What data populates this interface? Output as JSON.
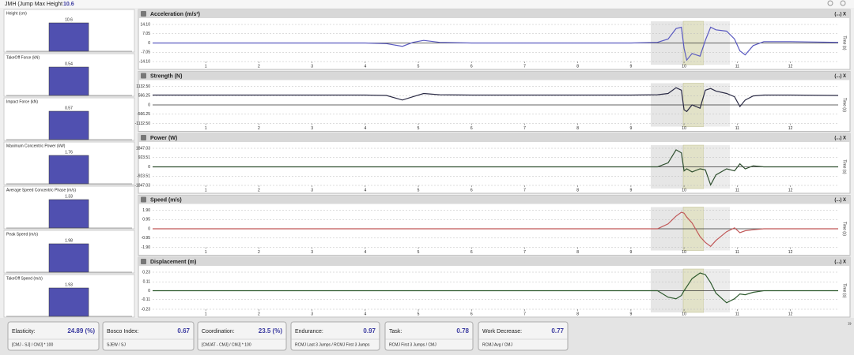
{
  "header": {
    "label": "JMH (Jump Max Height",
    "value": "10.6"
  },
  "indicators": [
    {
      "title": "Height (cm)",
      "value": 10.6
    },
    {
      "title": "TakeOff Force (kN)",
      "value": 0.54
    },
    {
      "title": "Impact Force (kN)",
      "value": 0.57
    },
    {
      "title": "Maximum Concentric Power (kW)",
      "value": 1.76
    },
    {
      "title": "Average Speed Concentric Phase (m/s)",
      "value": 1.33
    },
    {
      "title": "Peak Speed (m/s)",
      "value": 1.98
    },
    {
      "title": "TakeOff Speed (m/s)",
      "value": 1.93
    }
  ],
  "chart_controls": "(...) X",
  "chart_data": [
    {
      "type": "line",
      "title": "Acceleration (m/s²)",
      "xlabel": "Time (s)",
      "x": [
        0,
        1,
        2,
        3,
        4,
        4.4,
        4.7,
        4.9,
        5.1,
        5.4,
        6,
        7,
        8,
        9,
        9.5,
        9.7,
        9.85,
        9.95,
        10,
        10.05,
        10.15,
        10.3,
        10.4,
        10.5,
        10.6,
        10.8,
        10.95,
        11.05,
        11.15,
        11.3,
        11.5,
        12,
        12.9
      ],
      "series": [
        {
          "color": "#5a5ac0",
          "values": [
            0,
            0,
            0,
            0,
            0,
            -0.5,
            -2.5,
            0.5,
            2,
            0.5,
            0,
            0,
            0,
            0,
            0.5,
            3,
            11,
            12,
            -4,
            -13,
            -8,
            -10,
            2,
            12,
            10,
            9,
            3,
            -6,
            -9,
            -2,
            1,
            1,
            0.5
          ]
        }
      ],
      "xlim": [
        0,
        12.9
      ],
      "xticks": [
        1,
        2,
        3,
        4,
        5,
        6,
        7,
        8,
        9,
        10,
        11,
        12
      ],
      "ylim": [
        -14.1,
        14.1
      ],
      "yticks": [
        {
          "value": 14.1,
          "label": "14.10"
        },
        7.05,
        0,
        -7.05,
        {
          "value": -14.1,
          "label": "-14.10"
        }
      ],
      "grid": true
    },
    {
      "type": "line",
      "title": "Strength (N)",
      "xlabel": "Time (s)",
      "x": [
        0,
        1,
        2,
        3,
        4,
        4.4,
        4.7,
        4.9,
        5.1,
        5.4,
        6,
        7,
        8,
        9,
        9.5,
        9.7,
        9.85,
        9.95,
        10,
        10.05,
        10.15,
        10.3,
        10.4,
        10.5,
        10.6,
        10.8,
        10.95,
        11.05,
        11.15,
        11.3,
        11.5,
        12,
        12.9
      ],
      "series": [
        {
          "color": "#2a2a44",
          "values": [
            600,
            600,
            600,
            600,
            600,
            580,
            300,
            500,
            700,
            620,
            600,
            600,
            600,
            600,
            620,
            700,
            1050,
            900,
            -300,
            -400,
            0,
            -200,
            900,
            1000,
            850,
            700,
            500,
            -100,
            300,
            550,
            600,
            600,
            580
          ]
        }
      ],
      "xlim": [
        0,
        12.9
      ],
      "xticks": [
        1,
        2,
        3,
        4,
        5,
        6,
        7,
        8,
        9,
        10,
        11,
        12
      ],
      "ylim": [
        -1132.5,
        1132.5
      ],
      "yticks": [
        {
          "value": 1132.5,
          "label": "1132.50"
        },
        566.25,
        0,
        -566.25,
        {
          "value": -1132.5,
          "label": "-1132.50"
        }
      ],
      "grid": true
    },
    {
      "type": "line",
      "title": "Power (W)",
      "xlabel": "Time (s)",
      "x": [
        0,
        1,
        2,
        3,
        4,
        4.4,
        4.7,
        4.9,
        5.1,
        5.4,
        6,
        7,
        8,
        9,
        9.5,
        9.7,
        9.85,
        9.95,
        10,
        10.05,
        10.15,
        10.3,
        10.4,
        10.5,
        10.6,
        10.8,
        10.95,
        11.05,
        11.15,
        11.3,
        11.5,
        12,
        12.9
      ],
      "series": [
        {
          "color": "#2f4f2f",
          "values": [
            0,
            0,
            0,
            0,
            0,
            0,
            0,
            0,
            0,
            0,
            0,
            0,
            0,
            0,
            0,
            400,
            1700,
            1400,
            -400,
            -200,
            -500,
            -200,
            -300,
            -1800,
            -800,
            -200,
            -400,
            300,
            -200,
            100,
            0,
            0,
            0
          ]
        }
      ],
      "xlim": [
        0,
        12.9
      ],
      "xticks": [
        1,
        2,
        3,
        4,
        5,
        6,
        7,
        8,
        9,
        10,
        11,
        12
      ],
      "ylim": [
        -1847.03,
        1847.03
      ],
      "yticks": [
        1847.03,
        923.51,
        0,
        -923.51,
        -1847.03
      ],
      "grid": true
    },
    {
      "type": "line",
      "title": "Speed (m/s)",
      "xlabel": "Time (s)",
      "x": [
        0,
        1,
        2,
        3,
        4,
        4.4,
        4.7,
        4.9,
        5.1,
        5.4,
        6,
        7,
        8,
        9,
        9.5,
        9.7,
        9.85,
        9.95,
        10,
        10.05,
        10.15,
        10.3,
        10.4,
        10.5,
        10.6,
        10.8,
        10.95,
        11.05,
        11.15,
        11.3,
        11.5,
        12,
        12.9
      ],
      "series": [
        {
          "color": "#c05858",
          "values": [
            0,
            0,
            0,
            0,
            0,
            0,
            0,
            0,
            0,
            0,
            0,
            0,
            0,
            0,
            0,
            0.5,
            1.3,
            1.7,
            1.6,
            1.2,
            0.6,
            -0.8,
            -1.4,
            -1.8,
            -1.2,
            -0.3,
            0.1,
            -0.4,
            -0.2,
            -0.1,
            0,
            0,
            0
          ]
        }
      ],
      "xlim": [
        0,
        12.9
      ],
      "xticks": [
        1,
        2,
        3,
        4,
        5,
        6,
        7,
        8,
        9,
        10,
        11,
        12
      ],
      "ylim": [
        -1.9,
        1.9
      ],
      "yticks": [
        {
          "value": 1.9,
          "label": "1.90"
        },
        0.95,
        0,
        -0.95,
        {
          "value": -1.9,
          "label": "-1.90"
        }
      ],
      "grid": true
    },
    {
      "type": "line",
      "title": "Displacement (m)",
      "xlabel": "Time (s)",
      "x": [
        0,
        1,
        2,
        3,
        4,
        4.4,
        4.7,
        4.9,
        5.1,
        5.4,
        6,
        7,
        8,
        9,
        9.5,
        9.7,
        9.85,
        9.95,
        10,
        10.05,
        10.15,
        10.3,
        10.4,
        10.5,
        10.6,
        10.8,
        10.95,
        11.05,
        11.15,
        11.3,
        11.5,
        12,
        12.9
      ],
      "series": [
        {
          "color": "#2e5a2e",
          "values": [
            0,
            0,
            0,
            0,
            0,
            0,
            0,
            0,
            0,
            0,
            0,
            0,
            0,
            0,
            0,
            -0.08,
            -0.1,
            -0.06,
            0,
            0.05,
            0.15,
            0.22,
            0.2,
            0.1,
            -0.03,
            -0.15,
            -0.1,
            -0.04,
            -0.05,
            -0.02,
            0,
            0,
            0
          ]
        }
      ],
      "xlim": [
        0,
        12.9
      ],
      "xticks": [
        1,
        2,
        3,
        4,
        5,
        6,
        7,
        8,
        9,
        10,
        11,
        12
      ],
      "ylim": [
        -0.23,
        0.23
      ],
      "yticks": [
        0.23,
        0.11,
        0,
        -0.11,
        -0.23
      ],
      "grid": true
    }
  ],
  "cards": [
    {
      "label": "Elasticity:",
      "value": "24.89 (%)",
      "formula": "[CMJ - SJ] / CMJ] * 100"
    },
    {
      "label": "Bosco Index:",
      "value": "0.67",
      "formula": "SJEW / SJ"
    },
    {
      "label": "Coordination:",
      "value": "23.5 (%)",
      "formula": "[CMJAT - CMJ] / CMJ] * 100"
    },
    {
      "label": "Endurance:",
      "value": "0.97",
      "formula": "RCMJ Last 3 Jumps / RCMJ First 3 Jumps"
    },
    {
      "label": "Task:",
      "value": "0.78",
      "formula": "RCMJ First 3 Jumps / CMJ"
    },
    {
      "label": "Work Decrease:",
      "value": "0.77",
      "formula": "RCMJ Avg / CMJ"
    }
  ],
  "expand": "»"
}
